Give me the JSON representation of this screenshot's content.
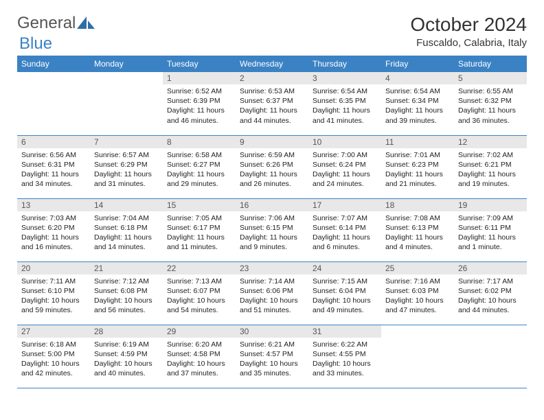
{
  "brand": {
    "part1": "General",
    "part2": "Blue"
  },
  "title": "October 2024",
  "location": "Fuscaldo, Calabria, Italy",
  "colors": {
    "header_bg": "#3b82c4",
    "header_text": "#ffffff",
    "daynum_bg": "#e8e8e8",
    "daynum_text": "#555555",
    "border": "#3b82c4",
    "page_bg": "#ffffff",
    "text": "#222222"
  },
  "typography": {
    "base_fontsize": 11,
    "title_fontsize": 28,
    "header_fontsize": 12
  },
  "days": [
    "Sunday",
    "Monday",
    "Tuesday",
    "Wednesday",
    "Thursday",
    "Friday",
    "Saturday"
  ],
  "weeks": [
    [
      {
        "n": "",
        "l1": "",
        "l2": "",
        "l3": "",
        "l4": "",
        "empty": true
      },
      {
        "n": "",
        "l1": "",
        "l2": "",
        "l3": "",
        "l4": "",
        "empty": true
      },
      {
        "n": "1",
        "l1": "Sunrise: 6:52 AM",
        "l2": "Sunset: 6:39 PM",
        "l3": "Daylight: 11 hours",
        "l4": "and 46 minutes."
      },
      {
        "n": "2",
        "l1": "Sunrise: 6:53 AM",
        "l2": "Sunset: 6:37 PM",
        "l3": "Daylight: 11 hours",
        "l4": "and 44 minutes."
      },
      {
        "n": "3",
        "l1": "Sunrise: 6:54 AM",
        "l2": "Sunset: 6:35 PM",
        "l3": "Daylight: 11 hours",
        "l4": "and 41 minutes."
      },
      {
        "n": "4",
        "l1": "Sunrise: 6:54 AM",
        "l2": "Sunset: 6:34 PM",
        "l3": "Daylight: 11 hours",
        "l4": "and 39 minutes."
      },
      {
        "n": "5",
        "l1": "Sunrise: 6:55 AM",
        "l2": "Sunset: 6:32 PM",
        "l3": "Daylight: 11 hours",
        "l4": "and 36 minutes."
      }
    ],
    [
      {
        "n": "6",
        "l1": "Sunrise: 6:56 AM",
        "l2": "Sunset: 6:31 PM",
        "l3": "Daylight: 11 hours",
        "l4": "and 34 minutes."
      },
      {
        "n": "7",
        "l1": "Sunrise: 6:57 AM",
        "l2": "Sunset: 6:29 PM",
        "l3": "Daylight: 11 hours",
        "l4": "and 31 minutes."
      },
      {
        "n": "8",
        "l1": "Sunrise: 6:58 AM",
        "l2": "Sunset: 6:27 PM",
        "l3": "Daylight: 11 hours",
        "l4": "and 29 minutes."
      },
      {
        "n": "9",
        "l1": "Sunrise: 6:59 AM",
        "l2": "Sunset: 6:26 PM",
        "l3": "Daylight: 11 hours",
        "l4": "and 26 minutes."
      },
      {
        "n": "10",
        "l1": "Sunrise: 7:00 AM",
        "l2": "Sunset: 6:24 PM",
        "l3": "Daylight: 11 hours",
        "l4": "and 24 minutes."
      },
      {
        "n": "11",
        "l1": "Sunrise: 7:01 AM",
        "l2": "Sunset: 6:23 PM",
        "l3": "Daylight: 11 hours",
        "l4": "and 21 minutes."
      },
      {
        "n": "12",
        "l1": "Sunrise: 7:02 AM",
        "l2": "Sunset: 6:21 PM",
        "l3": "Daylight: 11 hours",
        "l4": "and 19 minutes."
      }
    ],
    [
      {
        "n": "13",
        "l1": "Sunrise: 7:03 AM",
        "l2": "Sunset: 6:20 PM",
        "l3": "Daylight: 11 hours",
        "l4": "and 16 minutes."
      },
      {
        "n": "14",
        "l1": "Sunrise: 7:04 AM",
        "l2": "Sunset: 6:18 PM",
        "l3": "Daylight: 11 hours",
        "l4": "and 14 minutes."
      },
      {
        "n": "15",
        "l1": "Sunrise: 7:05 AM",
        "l2": "Sunset: 6:17 PM",
        "l3": "Daylight: 11 hours",
        "l4": "and 11 minutes."
      },
      {
        "n": "16",
        "l1": "Sunrise: 7:06 AM",
        "l2": "Sunset: 6:15 PM",
        "l3": "Daylight: 11 hours",
        "l4": "and 9 minutes."
      },
      {
        "n": "17",
        "l1": "Sunrise: 7:07 AM",
        "l2": "Sunset: 6:14 PM",
        "l3": "Daylight: 11 hours",
        "l4": "and 6 minutes."
      },
      {
        "n": "18",
        "l1": "Sunrise: 7:08 AM",
        "l2": "Sunset: 6:13 PM",
        "l3": "Daylight: 11 hours",
        "l4": "and 4 minutes."
      },
      {
        "n": "19",
        "l1": "Sunrise: 7:09 AM",
        "l2": "Sunset: 6:11 PM",
        "l3": "Daylight: 11 hours",
        "l4": "and 1 minute."
      }
    ],
    [
      {
        "n": "20",
        "l1": "Sunrise: 7:11 AM",
        "l2": "Sunset: 6:10 PM",
        "l3": "Daylight: 10 hours",
        "l4": "and 59 minutes."
      },
      {
        "n": "21",
        "l1": "Sunrise: 7:12 AM",
        "l2": "Sunset: 6:08 PM",
        "l3": "Daylight: 10 hours",
        "l4": "and 56 minutes."
      },
      {
        "n": "22",
        "l1": "Sunrise: 7:13 AM",
        "l2": "Sunset: 6:07 PM",
        "l3": "Daylight: 10 hours",
        "l4": "and 54 minutes."
      },
      {
        "n": "23",
        "l1": "Sunrise: 7:14 AM",
        "l2": "Sunset: 6:06 PM",
        "l3": "Daylight: 10 hours",
        "l4": "and 51 minutes."
      },
      {
        "n": "24",
        "l1": "Sunrise: 7:15 AM",
        "l2": "Sunset: 6:04 PM",
        "l3": "Daylight: 10 hours",
        "l4": "and 49 minutes."
      },
      {
        "n": "25",
        "l1": "Sunrise: 7:16 AM",
        "l2": "Sunset: 6:03 PM",
        "l3": "Daylight: 10 hours",
        "l4": "and 47 minutes."
      },
      {
        "n": "26",
        "l1": "Sunrise: 7:17 AM",
        "l2": "Sunset: 6:02 PM",
        "l3": "Daylight: 10 hours",
        "l4": "and 44 minutes."
      }
    ],
    [
      {
        "n": "27",
        "l1": "Sunrise: 6:18 AM",
        "l2": "Sunset: 5:00 PM",
        "l3": "Daylight: 10 hours",
        "l4": "and 42 minutes."
      },
      {
        "n": "28",
        "l1": "Sunrise: 6:19 AM",
        "l2": "Sunset: 4:59 PM",
        "l3": "Daylight: 10 hours",
        "l4": "and 40 minutes."
      },
      {
        "n": "29",
        "l1": "Sunrise: 6:20 AM",
        "l2": "Sunset: 4:58 PM",
        "l3": "Daylight: 10 hours",
        "l4": "and 37 minutes."
      },
      {
        "n": "30",
        "l1": "Sunrise: 6:21 AM",
        "l2": "Sunset: 4:57 PM",
        "l3": "Daylight: 10 hours",
        "l4": "and 35 minutes."
      },
      {
        "n": "31",
        "l1": "Sunrise: 6:22 AM",
        "l2": "Sunset: 4:55 PM",
        "l3": "Daylight: 10 hours",
        "l4": "and 33 minutes."
      },
      {
        "n": "",
        "l1": "",
        "l2": "",
        "l3": "",
        "l4": "",
        "empty": true
      },
      {
        "n": "",
        "l1": "",
        "l2": "",
        "l3": "",
        "l4": "",
        "empty": true
      }
    ]
  ]
}
